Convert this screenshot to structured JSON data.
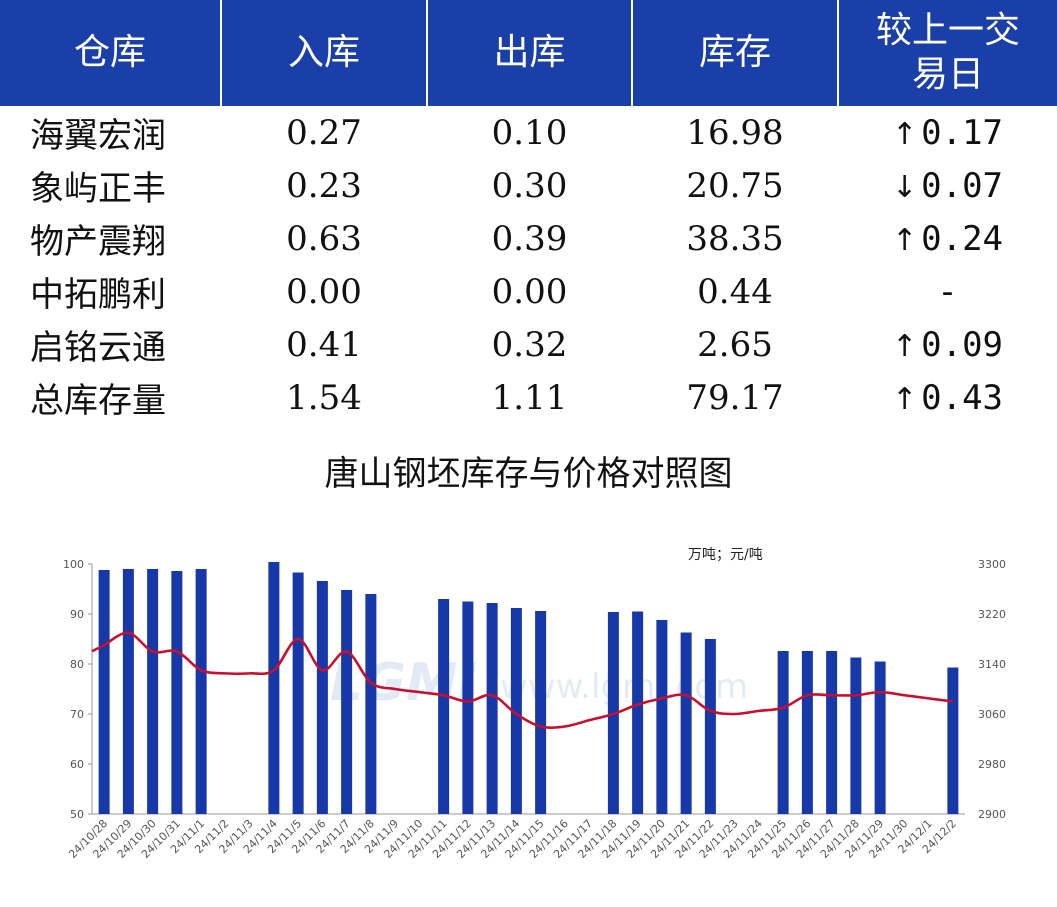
{
  "table": {
    "headers": [
      "仓库",
      "入库",
      "出库",
      "库存",
      "较上一交易日"
    ],
    "rows": [
      {
        "warehouse": "海翼宏润",
        "in": "0.27",
        "out": "0.10",
        "stock": "16.98",
        "dir": "up",
        "change": "0.17"
      },
      {
        "warehouse": "象屿正丰",
        "in": "0.23",
        "out": "0.30",
        "stock": "20.75",
        "dir": "down",
        "change": "0.07"
      },
      {
        "warehouse": "物产震翔",
        "in": "0.63",
        "out": "0.39",
        "stock": "38.35",
        "dir": "up",
        "change": "0.24"
      },
      {
        "warehouse": "中拓鹏利",
        "in": "0.00",
        "out": "0.00",
        "stock": "0.44",
        "dir": "flat",
        "change": "-"
      },
      {
        "warehouse": "启铭云通",
        "in": "0.41",
        "out": "0.32",
        "stock": "2.65",
        "dir": "up",
        "change": "0.09"
      },
      {
        "warehouse": "总库存量",
        "in": "1.54",
        "out": "1.11",
        "stock": "79.17",
        "dir": "up",
        "change": "0.43"
      }
    ],
    "arrows": {
      "up": "↑",
      "down": "↓"
    },
    "colors": {
      "header_bg": "#1a3fa8",
      "up": "#e00000",
      "down": "#009a3a"
    }
  },
  "chart_title": "唐山钢坯库存与价格对照图",
  "unit_label": "万吨；元/吨",
  "watermark": {
    "logo": "LGMI",
    "url": "www.lgmi.com"
  },
  "chart_data": {
    "type": "bar",
    "categories": [
      "24/10/28",
      "24/10/29",
      "24/10/30",
      "24/10/31",
      "24/11/1",
      "24/11/2",
      "24/11/3",
      "24/11/4",
      "24/11/5",
      "24/11/6",
      "24/11/7",
      "24/11/8",
      "24/11/9",
      "24/11/10",
      "24/11/11",
      "24/11/12",
      "24/11/13",
      "24/11/14",
      "24/11/15",
      "24/11/16",
      "24/11/17",
      "24/11/18",
      "24/11/19",
      "24/11/20",
      "24/11/21",
      "24/11/22",
      "24/11/23",
      "24/11/24",
      "24/11/25",
      "24/11/26",
      "24/11/27",
      "24/11/28",
      "24/11/29",
      "24/11/30",
      "24/12/1",
      "24/12/2"
    ],
    "series": [
      {
        "type": "bar",
        "axis": "left",
        "color": "#1638a8",
        "values": [
          98.8,
          99.0,
          99.0,
          98.6,
          99.0,
          null,
          null,
          100.4,
          98.3,
          96.6,
          94.8,
          94.0,
          null,
          null,
          93.0,
          92.5,
          92.2,
          91.2,
          90.6,
          null,
          null,
          90.4,
          90.5,
          88.8,
          86.3,
          85.0,
          null,
          null,
          82.6,
          82.6,
          82.6,
          81.3,
          80.5,
          null,
          null,
          79.3
        ]
      },
      {
        "type": "line",
        "axis": "right",
        "color": "#c8102e",
        "values": [
          3170,
          3190,
          3160,
          3160,
          3130,
          3125,
          3125,
          3130,
          3180,
          3130,
          3160,
          3110,
          3100,
          3095,
          3090,
          3080,
          3090,
          3060,
          3040,
          3040,
          3050,
          3060,
          3075,
          3085,
          3090,
          3065,
          3060,
          3065,
          3070,
          3090,
          3090,
          3090,
          3095,
          3090,
          3085,
          3080
        ]
      }
    ],
    "ylim_left": [
      50,
      100
    ],
    "yticks_left": [
      50,
      60,
      70,
      80,
      90,
      100
    ],
    "ylim_right": [
      2900,
      3300
    ],
    "yticks_right": [
      2900,
      2980,
      3060,
      3140,
      3220,
      3300
    ],
    "grid": false
  }
}
